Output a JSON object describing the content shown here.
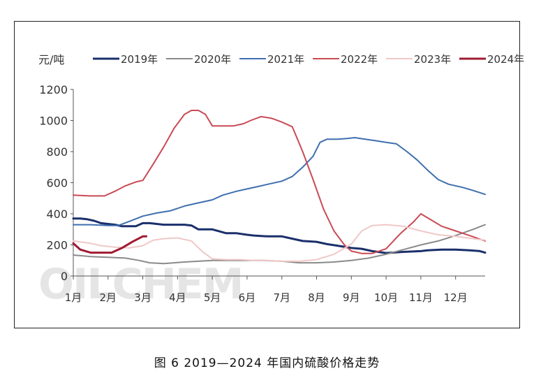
{
  "caption": "图 6  2019—2024 年国内硫酸价格走势",
  "watermark": "OILCHEM",
  "chart_data": {
    "type": "line",
    "ylabel": "元/吨",
    "ylim": [
      0,
      1200
    ],
    "yticks": [
      0,
      200,
      400,
      600,
      800,
      1000,
      1200
    ],
    "xlim": [
      1,
      12.85
    ],
    "xticks": [
      1,
      2,
      3,
      4,
      5,
      6,
      7,
      8,
      9,
      10,
      11,
      12
    ],
    "xtick_labels": [
      "1月",
      "2月",
      "3月",
      "4月",
      "5月",
      "6月",
      "7月",
      "8月",
      "9月",
      "10月",
      "11月",
      "12月"
    ],
    "grid": false,
    "legend_position": "top",
    "series": [
      {
        "name": "2019年",
        "color": "#1a2f6b",
        "width": 3.0,
        "x": [
          1,
          1.2,
          1.4,
          1.6,
          1.8,
          2,
          2.2,
          2.4,
          2.6,
          2.8,
          3,
          3.2,
          3.4,
          3.6,
          4,
          4.2,
          4.4,
          4.6,
          4.8,
          5,
          5.4,
          5.7,
          6,
          6.2,
          6.6,
          7,
          7.3,
          7.6,
          8,
          8.3,
          8.6,
          9,
          9.3,
          9.6,
          10,
          10.5,
          11,
          11.2,
          11.6,
          12,
          12.4,
          12.7,
          12.85
        ],
        "y": [
          370,
          370,
          365,
          355,
          340,
          335,
          330,
          320,
          320,
          320,
          340,
          340,
          335,
          330,
          330,
          330,
          325,
          300,
          300,
          300,
          275,
          275,
          265,
          260,
          255,
          255,
          240,
          225,
          220,
          205,
          195,
          180,
          175,
          160,
          148,
          155,
          160,
          165,
          170,
          170,
          165,
          160,
          150
        ]
      },
      {
        "name": "2020年",
        "color": "#8a8a8a",
        "width": 2.0,
        "x": [
          1,
          1.5,
          2,
          2.5,
          2.9,
          3.2,
          3.6,
          3.9,
          4.2,
          4.6,
          5,
          5.5,
          6,
          6.5,
          7,
          7.5,
          8,
          8.5,
          9,
          9.5,
          10,
          10.5,
          11,
          11.5,
          12,
          12.5,
          12.85
        ],
        "y": [
          135,
          125,
          120,
          115,
          100,
          85,
          80,
          85,
          90,
          95,
          100,
          100,
          100,
          100,
          95,
          85,
          85,
          90,
          100,
          115,
          140,
          170,
          200,
          225,
          260,
          300,
          330
        ]
      },
      {
        "name": "2021年",
        "color": "#3f6fae",
        "width": 2.0,
        "x": [
          1,
          1.5,
          2,
          2.3,
          2.6,
          3,
          3.4,
          3.8,
          4.2,
          4.6,
          5,
          5.3,
          5.7,
          6,
          6.3,
          6.6,
          7,
          7.3,
          7.6,
          7.9,
          8.1,
          8.3,
          8.6,
          8.9,
          9.1,
          9.4,
          9.7,
          10,
          10.3,
          10.6,
          10.9,
          11.2,
          11.5,
          11.8,
          12.2,
          12.5,
          12.85
        ],
        "y": [
          330,
          330,
          325,
          325,
          350,
          385,
          405,
          420,
          450,
          470,
          490,
          520,
          545,
          560,
          575,
          590,
          610,
          640,
          700,
          770,
          860,
          880,
          880,
          885,
          890,
          880,
          870,
          860,
          850,
          800,
          745,
          680,
          620,
          590,
          570,
          550,
          525
        ]
      },
      {
        "name": "2022年",
        "color": "#c94a55",
        "width": 2.0,
        "x": [
          1,
          1.5,
          1.9,
          2.2,
          2.5,
          2.8,
          3,
          3.3,
          3.6,
          3.9,
          4.2,
          4.4,
          4.6,
          4.8,
          5,
          5.3,
          5.6,
          5.9,
          6.1,
          6.4,
          6.7,
          7,
          7.3,
          7.6,
          7.9,
          8.2,
          8.5,
          8.8,
          9,
          9.3,
          9.6,
          10,
          10.4,
          10.8,
          11,
          11.3,
          11.6,
          12,
          12.4,
          12.85
        ],
        "y": [
          520,
          515,
          515,
          545,
          580,
          605,
          615,
          720,
          830,
          950,
          1040,
          1065,
          1065,
          1040,
          965,
          965,
          965,
          980,
          1000,
          1025,
          1015,
          990,
          960,
          800,
          620,
          430,
          290,
          200,
          160,
          145,
          145,
          175,
          270,
          350,
          400,
          360,
          320,
          290,
          260,
          225
        ]
      },
      {
        "name": "2023年",
        "color": "#f0c8c8",
        "width": 2.0,
        "x": [
          1,
          1.5,
          1.8,
          2.2,
          2.6,
          3,
          3.3,
          3.6,
          4,
          4.4,
          4.7,
          5,
          5.4,
          5.8,
          6.2,
          6.6,
          7,
          7.5,
          8,
          8.5,
          9,
          9.3,
          9.6,
          10,
          10.5,
          11,
          11.5,
          12,
          12.5,
          12.85
        ],
        "y": [
          225,
          210,
          195,
          185,
          180,
          195,
          230,
          240,
          245,
          225,
          160,
          110,
          105,
          105,
          100,
          100,
          95,
          95,
          105,
          140,
          205,
          290,
          325,
          330,
          320,
          290,
          265,
          255,
          240,
          230
        ]
      },
      {
        "name": "2024年",
        "color": "#9e1b32",
        "width": 3.0,
        "x": [
          1,
          1.2,
          1.5,
          1.8,
          2.1,
          2.4,
          2.7,
          3,
          3.1
        ],
        "y": [
          210,
          170,
          150,
          150,
          150,
          180,
          220,
          255,
          255
        ]
      }
    ]
  }
}
